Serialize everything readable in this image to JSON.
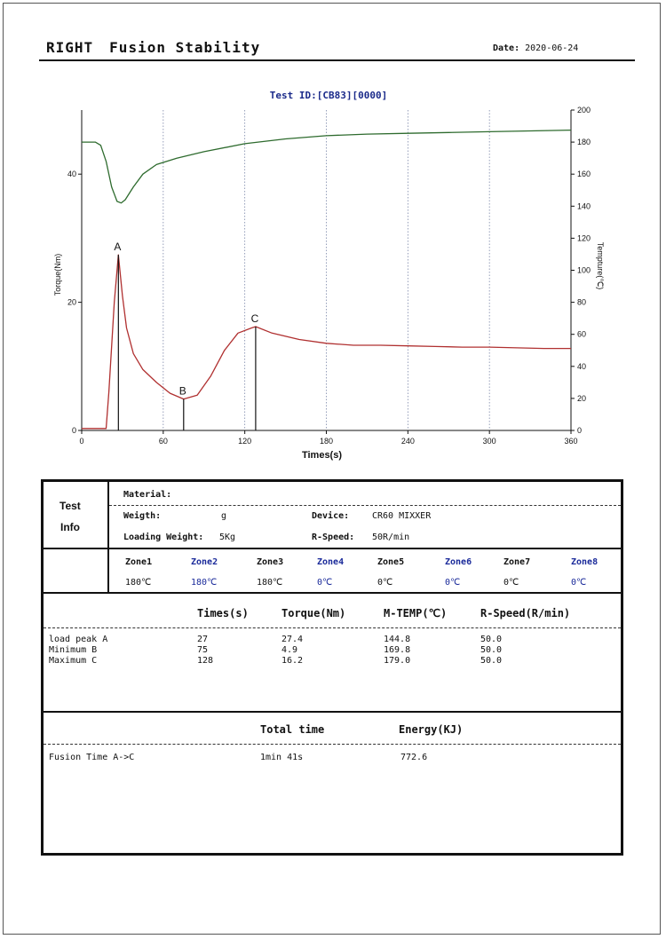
{
  "header": {
    "brand": "RIGHT",
    "title": "Fusion Stability",
    "date_label": "Date:",
    "date_value": "2020-06-24"
  },
  "chart_data": {
    "type": "line",
    "title": "Test ID:[CB83][0000]",
    "xlabel": "Times(s)",
    "ylabel": "Torque(Nm)",
    "y2label": "Tempture(℃)",
    "xlim": [
      0,
      360
    ],
    "ylim": [
      0,
      50
    ],
    "y2lim": [
      0,
      200
    ],
    "x_ticks": [
      "0",
      "60",
      "120",
      "180",
      "240",
      "300",
      "360"
    ],
    "y_ticks": [
      "0",
      "20",
      "40"
    ],
    "y2_ticks": [
      "0",
      "20",
      "40",
      "60",
      "80",
      "100",
      "120",
      "140",
      "160",
      "180",
      "200"
    ],
    "grid": "vertical dotted",
    "series": [
      {
        "axis": "y",
        "color": "#b03030",
        "x": [
          0,
          18,
          20,
          24,
          27,
          30,
          33,
          38,
          45,
          55,
          65,
          75,
          85,
          95,
          105,
          115,
          125,
          128,
          140,
          160,
          180,
          200,
          220,
          240,
          260,
          280,
          300,
          320,
          340,
          360
        ],
        "values": [
          0.3,
          0.3,
          6,
          20,
          27.4,
          21,
          16,
          12,
          9.5,
          7.5,
          5.8,
          4.9,
          5.5,
          8.5,
          12.5,
          15.2,
          16.0,
          16.2,
          15.2,
          14.2,
          13.6,
          13.3,
          13.3,
          13.2,
          13.1,
          13.0,
          13.0,
          12.9,
          12.8,
          12.8
        ]
      },
      {
        "axis": "y2",
        "color": "#2e6b2e",
        "x": [
          0,
          5,
          10,
          14,
          18,
          22,
          26,
          29,
          32,
          38,
          45,
          55,
          70,
          90,
          120,
          150,
          180,
          210,
          240,
          270,
          300,
          330,
          360
        ],
        "values": [
          180,
          180,
          180,
          178,
          168,
          152,
          143,
          142,
          144,
          152,
          160,
          166,
          170,
          174,
          179,
          182,
          184,
          185,
          185.5,
          186,
          186.5,
          187,
          187.5
        ]
      }
    ],
    "markers": [
      {
        "label": "A",
        "x": 27,
        "y": 27.4
      },
      {
        "label": "B",
        "x": 75,
        "y": 4.9
      },
      {
        "label": "C",
        "x": 128,
        "y": 16.2
      }
    ]
  },
  "info": {
    "section_label_1": "Test",
    "section_label_2": "Info",
    "material_label": "Material:",
    "material_value": "",
    "weigth_label": "Weigth:",
    "weigth_unit": "g",
    "loading_label": "Loading Weight:",
    "loading_value": "5Kg",
    "device_label": "Device:",
    "device_value": "CR60 MIXXER",
    "rspeed_label": "R-Speed:",
    "rspeed_value": "50R/min"
  },
  "zones": [
    {
      "name": "Zone1",
      "temp": "180℃",
      "blue": false
    },
    {
      "name": "Zone2",
      "temp": "180℃",
      "blue": true
    },
    {
      "name": "Zone3",
      "temp": "180℃",
      "blue": false
    },
    {
      "name": "Zone4",
      "temp": "0℃",
      "blue": true
    },
    {
      "name": "Zone5",
      "temp": "0℃",
      "blue": false
    },
    {
      "name": "Zone6",
      "temp": "0℃",
      "blue": true
    },
    {
      "name": "Zone7",
      "temp": "0℃",
      "blue": false
    },
    {
      "name": "Zone8",
      "temp": "0℃",
      "blue": true
    }
  ],
  "results": {
    "headers": [
      "Times(s)",
      "Torque(Nm)",
      "M-TEMP(℃)",
      "R-Speed(R/min)"
    ],
    "rows": [
      {
        "name": "load peak A",
        "time": "27",
        "torque": "27.4",
        "temp": "144.8",
        "speed": "50.0"
      },
      {
        "name": "Minimum B",
        "time": "75",
        "torque": "4.9",
        "temp": "169.8",
        "speed": "50.0"
      },
      {
        "name": "Maximum C",
        "time": "128",
        "torque": "16.2",
        "temp": "179.0",
        "speed": "50.0"
      }
    ]
  },
  "fusion": {
    "total_time_header": "Total time",
    "energy_header": "Energy(KJ)",
    "row_label": "Fusion Time A->C",
    "total_time": "1min 41s",
    "energy": "772.6"
  }
}
